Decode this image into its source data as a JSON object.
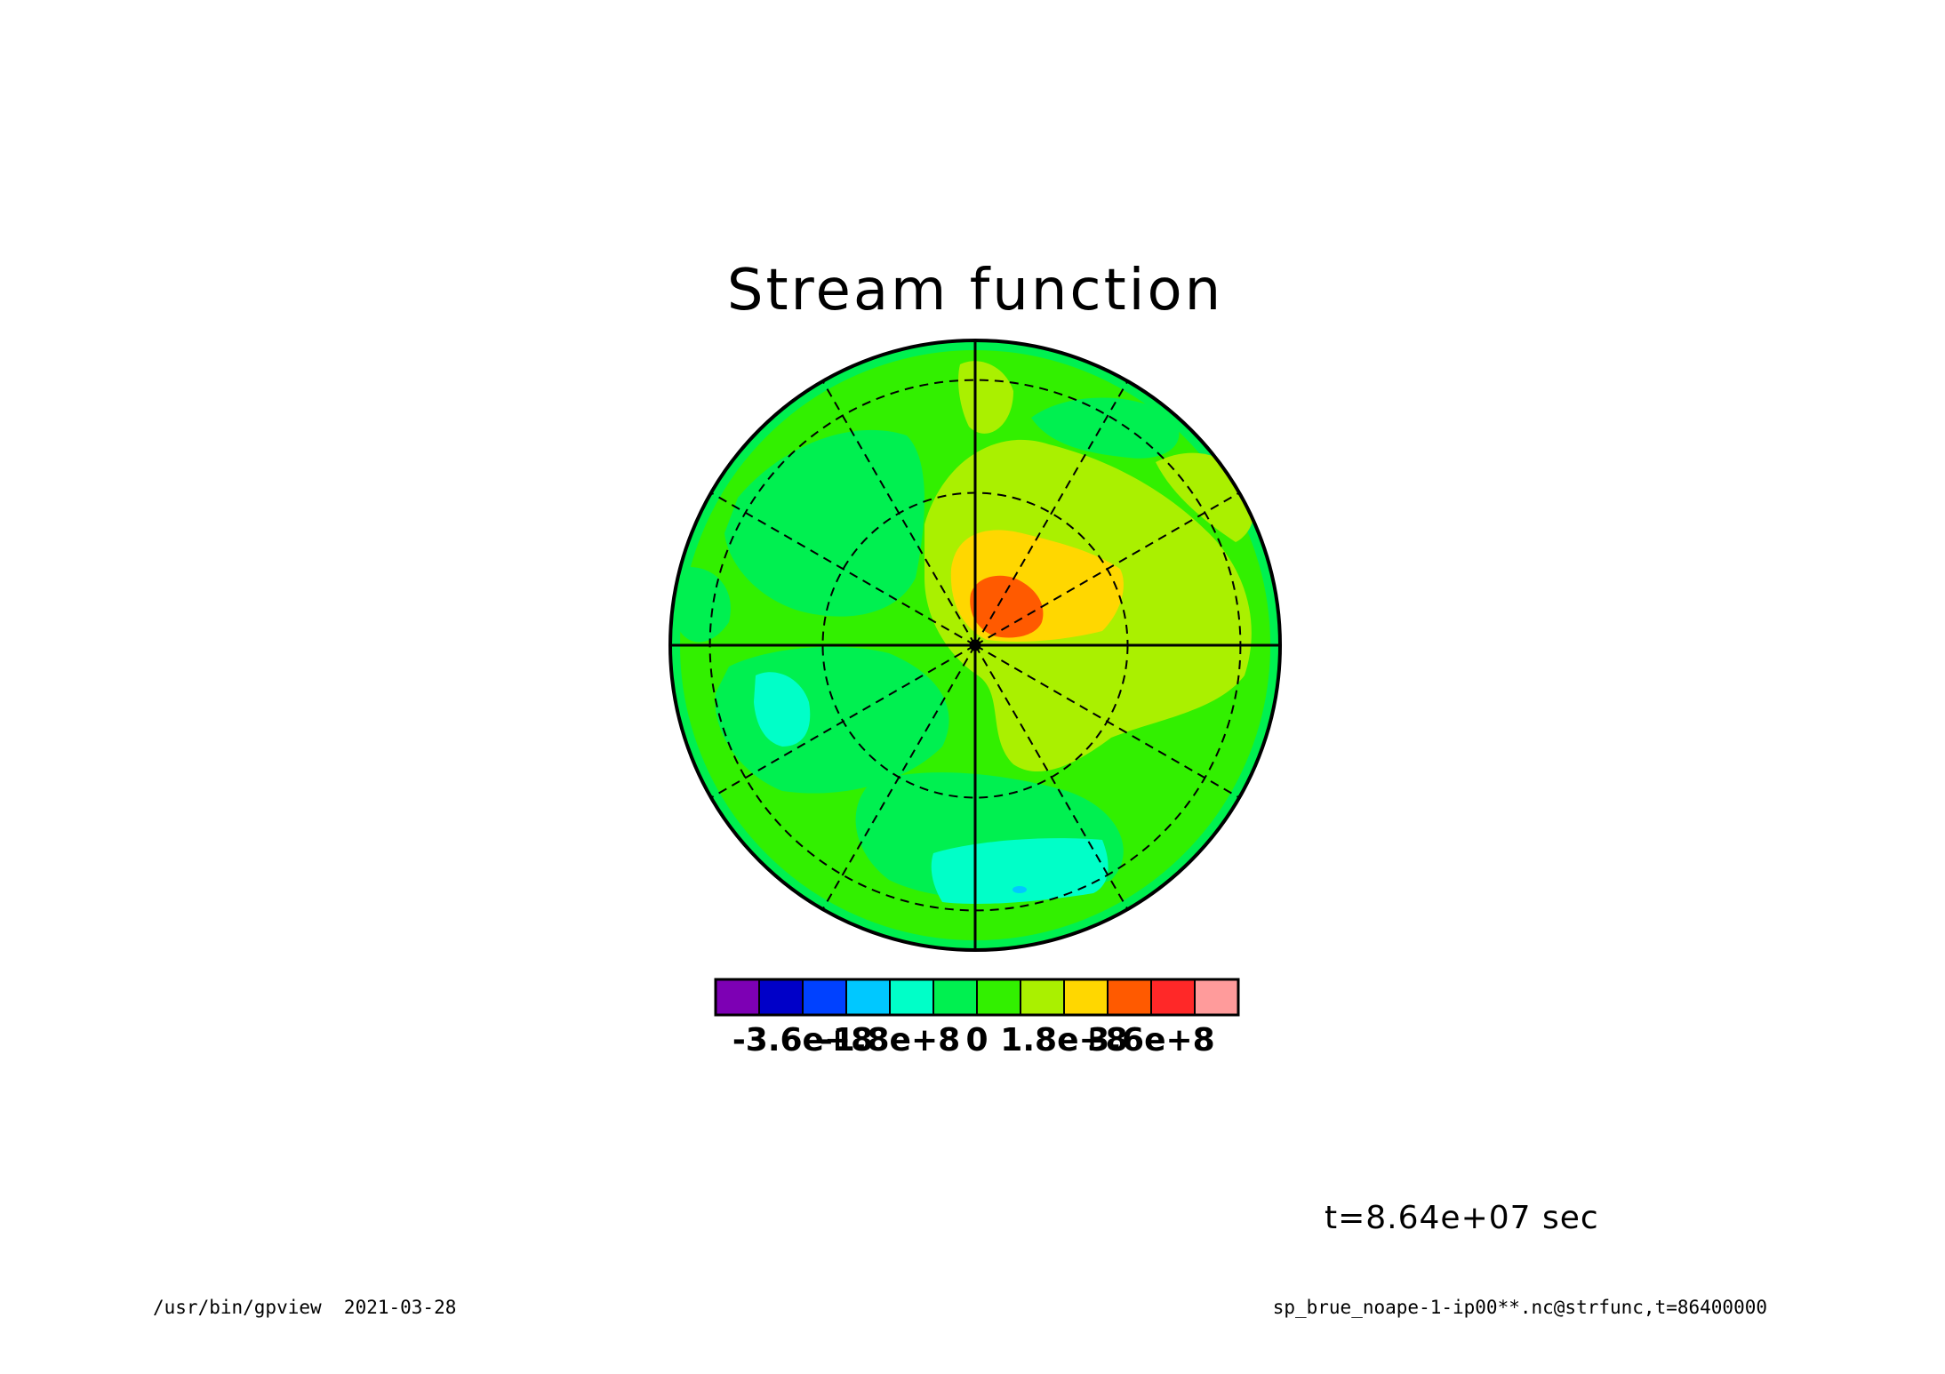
{
  "chart_data": {
    "type": "heatmap",
    "projection": "polar-stereographic",
    "title": "Stream function",
    "time_label": "t=8.64e+07 sec",
    "footer_left": "/usr/bin/gpview  2021-03-28",
    "footer_right": "sp_brue_noape-1-ip00**.nc@strfunc,t=86400000",
    "grid": true,
    "legend": "colorbar-bottom",
    "color_scale": {
      "colors": [
        "#7d00b4",
        "#0000c8",
        "#0041ff",
        "#00c8ff",
        "#00ffc8",
        "#00f050",
        "#32f000",
        "#aaf000",
        "#ffd700",
        "#ff5a00",
        "#ff2828",
        "#ff9b9b"
      ],
      "bounds": [
        -360000000.0,
        -270000000.0,
        -180000000.0,
        -90000000.0,
        0,
        90000000.0,
        180000000.0,
        270000000.0,
        360000000.0
      ],
      "tick_labels": [
        "-3.6e+8",
        "-1.8e+8",
        "0",
        "1.8e+8",
        "3.6e+8"
      ]
    },
    "field_regions": [
      {
        "level": 6,
        "value_range": [
          0,
          90000000.0
        ]
      },
      {
        "level": 5,
        "value_range": [
          -90000000.0,
          0
        ]
      },
      {
        "level": 7,
        "value_range": [
          90000000.0,
          180000000.0
        ]
      },
      {
        "level": 8,
        "value_range": [
          180000000.0,
          270000000.0
        ]
      },
      {
        "level": 9,
        "value_range": [
          270000000.0,
          360000000.0
        ]
      },
      {
        "level": 4,
        "value_range": [
          -180000000.0,
          -90000000.0
        ]
      },
      {
        "level": 3,
        "value_range": [
          -270000000.0,
          -180000000.0
        ]
      }
    ]
  }
}
